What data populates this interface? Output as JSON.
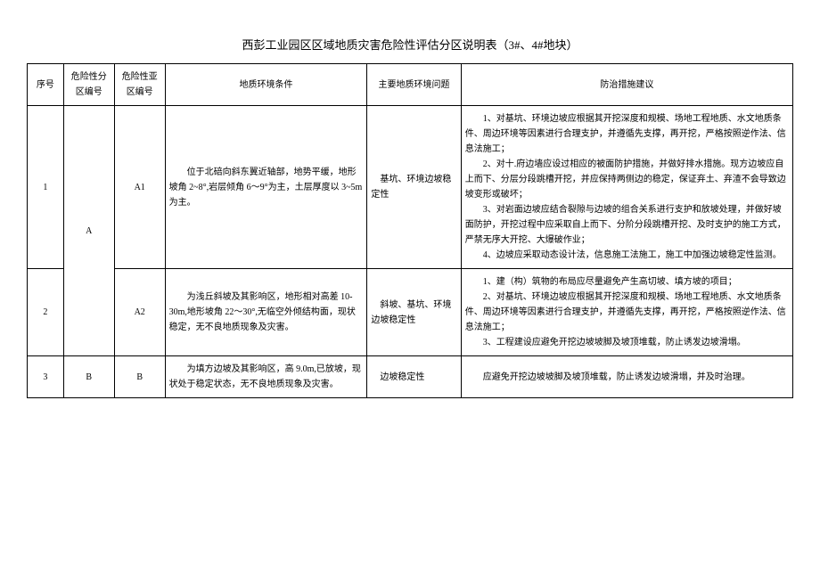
{
  "title": "西彭工业园区区域地质灾害危险性评估分区说明表（3#、4#地块）",
  "headers": {
    "idx": "序号",
    "zone": "危险性分区编号",
    "sub": "危险性亚区编号",
    "env": "地质环境条件",
    "issue": "主要地质环境问题",
    "rec": "防治措施建议"
  },
  "rows": {
    "r1": {
      "idx": "1",
      "zone": "A",
      "sub": "A1",
      "env": "　　位于北碚向斜东翼近轴部，地势平缓，地形坡角 2~8°,岩层倾角 6～9°为主，土层厚度以 3~5m 为主。",
      "issue": "　基坑、环境边坡稳定性",
      "rec_l1": "　　1、对基坑、环境边坡应根据其开挖深度和规模、场地工程地质、水文地质条件、周边环境等因素进行合理支护，并遵循先支撑，再开挖，严格按照逆作法、信息法施工；",
      "rec_l2": "　　2、对十.府边墙应设过相应的被面防护措施，并做好排水措施。现方边坡应自上而下、分层分段跳槽开挖，并应保持两侧边的稳定，保证弃土、弃渣不会导致边坡变形或破坏；",
      "rec_l3": "　　3、对岩面边坡应结合裂隙与边坡的组合关系进行支护和放坡处理，并做好坡面防护，开挖过程中应采取自上而下、分阶分段跳槽开挖、及时支护的施工方式，严禁无序大开挖、大爆破作业；",
      "rec_l4": "　　4、边坡应采取动态设计法，信息施工法施工，施工中加强边坡稳定性监测。"
    },
    "r2": {
      "idx": "2",
      "sub": "A2",
      "env": "　　为浅丘斜坡及其影响区，地形相对高差 10-30m,地形坡角 22～30°,无临空外倾结构面，现状稳定，无不良地质现象及灾害。",
      "issue": "　斜坡、基坑、环境边坡稳定性",
      "rec_l1": "　　1、建（构）筑物的布局应尽量避免产生高切坡、填方坡的项目；",
      "rec_l2": "　　2、对基坑、环境边坡应根据其开挖深度和规模、场地工程地质、水文地质条件、周边环境等因素进行合理支护，并遵循先支撑，再开挖，严格按照逆作法、信息法施工；",
      "rec_l3": "　　3、工程建设应避免开挖边坡坡脚及坡顶堆载，防止诱发边坡滑塌。"
    },
    "r3": {
      "idx": "3",
      "zone": "B",
      "sub": "B",
      "env": "　　为填方边坡及其影响区，高 9.0m,已放坡，现状处于稳定状态，无不良地质现象及灾害。",
      "issue": "　边坡稳定性",
      "rec": "　　应避免开挖边坡坡脚及坡顶堆载，防止诱发边坡滑塌，并及时治理。"
    }
  }
}
